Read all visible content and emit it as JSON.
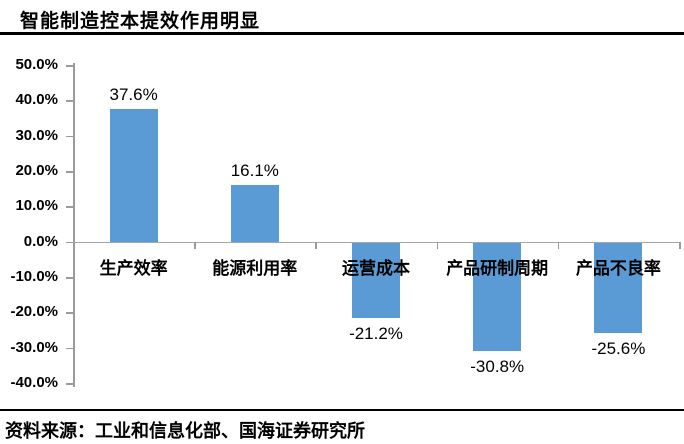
{
  "title": "智能制造控本提效作用明显",
  "source": {
    "prefix": "资料来源：",
    "text": "工业和信息化部、国海证券研究所"
  },
  "colors": {
    "bar": "#5b9bd5",
    "axis": "#9b9b9b",
    "zero_line": "#a6a6a6",
    "text": "#000000",
    "rule": "#000000"
  },
  "chart_data": {
    "type": "bar",
    "title": "智能制造控本提效作用明显",
    "categories": [
      "生产效率",
      "能源利用率",
      "运营成本",
      "产品研制周期",
      "产品不良率"
    ],
    "values": [
      37.6,
      16.1,
      -21.2,
      -30.8,
      -25.6
    ],
    "data_labels": [
      "37.6%",
      "16.1%",
      "-21.2%",
      "-30.8%",
      "-25.6%"
    ],
    "xlabel": "",
    "ylabel": "",
    "ylim": [
      -40,
      50
    ],
    "ytick_step": 10,
    "ytick_labels": [
      "50.0%",
      "40.0%",
      "30.0%",
      "20.0%",
      "10.0%",
      "0.0%",
      "-10.0%",
      "-20.0%",
      "-30.0%",
      "-40.0%"
    ],
    "grid": false,
    "legend": false,
    "bar_color": "#5b9bd5"
  }
}
